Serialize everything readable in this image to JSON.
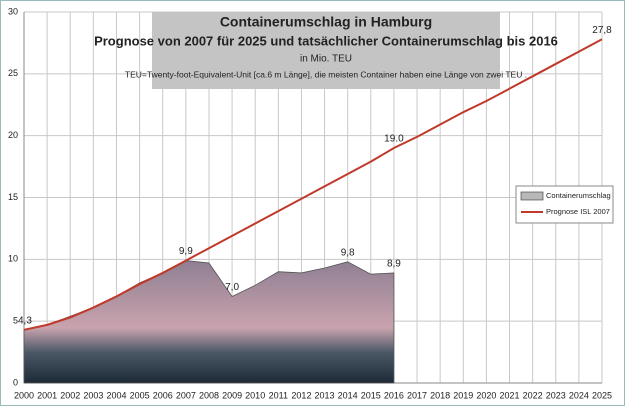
{
  "chart_data": {
    "type": "line",
    "title_lines": [
      "Containerumschlag in Hamburg",
      "Prognose von 2007 für 2025 und tatsächlicher Containerumschlag bis 2016",
      "in Mio. TEU",
      "TEU=Twenty-foot-Equivalent-Unit [ca.6 m Länge], die  meisten Container haben eine Länge von zwei TEU ."
    ],
    "x": [
      2000,
      2001,
      2002,
      2003,
      2004,
      2005,
      2006,
      2007,
      2008,
      2009,
      2010,
      2011,
      2012,
      2013,
      2014,
      2015,
      2016,
      2017,
      2018,
      2019,
      2020,
      2021,
      2022,
      2023,
      2024,
      2025
    ],
    "series": [
      {
        "name": "Containerumschlag",
        "style": "area",
        "color": "#9a8a9a",
        "values": [
          4.3,
          4.7,
          5.4,
          6.1,
          7.0,
          8.1,
          8.9,
          9.9,
          9.7,
          7.0,
          7.9,
          9.0,
          8.9,
          9.3,
          9.8,
          8.8,
          8.9,
          null,
          null,
          null,
          null,
          null,
          null,
          null,
          null,
          null
        ],
        "value_labels": [
          "4,3",
          null,
          null,
          null,
          null,
          null,
          null,
          "9,9",
          null,
          "7,0",
          null,
          null,
          null,
          null,
          "9,8",
          null,
          "8,9",
          null,
          null,
          null,
          null,
          null,
          null,
          null,
          null,
          null
        ]
      },
      {
        "name": "Prognose ISL 2007",
        "style": "line",
        "color": "#c0392b",
        "values": [
          4.3,
          4.7,
          5.3,
          6.1,
          7.0,
          8.0,
          8.9,
          9.9,
          10.9,
          11.9,
          12.9,
          13.9,
          14.9,
          15.9,
          16.9,
          17.9,
          19.0,
          19.9,
          20.9,
          21.9,
          22.8,
          23.8,
          24.8,
          25.8,
          26.8,
          27.8
        ],
        "value_labels": [
          null,
          null,
          null,
          null,
          null,
          null,
          null,
          null,
          null,
          null,
          null,
          null,
          null,
          null,
          null,
          null,
          "19.0",
          null,
          null,
          null,
          null,
          null,
          null,
          null,
          null,
          "27,8"
        ]
      }
    ],
    "xlim": [
      2000,
      2025
    ],
    "xticks": [
      2000,
      2001,
      2002,
      2003,
      2004,
      2005,
      2006,
      2007,
      2008,
      2009,
      2010,
      2011,
      2012,
      2013,
      2014,
      2015,
      2016,
      2017,
      2018,
      2019,
      2020,
      2021,
      2022,
      2023,
      2024,
      2025
    ],
    "ylim": [
      0,
      30
    ],
    "yticks": [
      0,
      5,
      10,
      15,
      20,
      25,
      30
    ],
    "grid": true,
    "legend": "right"
  }
}
